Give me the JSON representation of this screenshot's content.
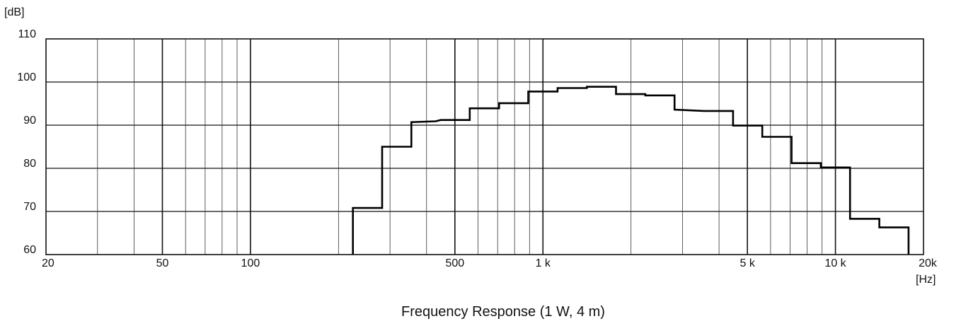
{
  "chart_data": {
    "type": "line",
    "title": "Frequency Response (1 W, 4 m)",
    "xlabel": "[Hz]",
    "ylabel": "[dB]",
    "x_scale": "log",
    "xlim": [
      20,
      20000
    ],
    "ylim": [
      60,
      110
    ],
    "grid": true,
    "x_ticks": [
      {
        "value": 20,
        "label": "20"
      },
      {
        "value": 50,
        "label": "50"
      },
      {
        "value": 100,
        "label": "100"
      },
      {
        "value": 500,
        "label": "500"
      },
      {
        "value": 1000,
        "label": "1 k"
      },
      {
        "value": 5000,
        "label": "5 k"
      },
      {
        "value": 10000,
        "label": "10 k"
      },
      {
        "value": 20000,
        "label": "20k"
      }
    ],
    "y_ticks": [
      {
        "value": 60,
        "label": "60"
      },
      {
        "value": 70,
        "label": "70"
      },
      {
        "value": 80,
        "label": "80"
      },
      {
        "value": 90,
        "label": "90"
      },
      {
        "value": 100,
        "label": "100"
      },
      {
        "value": 110,
        "label": "110"
      }
    ],
    "x_minor_grid": [
      30,
      40,
      60,
      70,
      80,
      90,
      200,
      300,
      400,
      600,
      700,
      800,
      900,
      2000,
      3000,
      4000,
      6000,
      7000,
      8000,
      9000
    ],
    "x_major_grid": [
      50,
      100,
      500,
      1000,
      5000,
      10000
    ],
    "series": [
      {
        "line_style": "step",
        "color": "#000000",
        "points": [
          {
            "x": 224,
            "y": 60
          },
          {
            "x": 224,
            "y": 70.8
          },
          {
            "x": 282,
            "y": 70.8
          },
          {
            "x": 282,
            "y": 85
          },
          {
            "x": 355,
            "y": 85
          },
          {
            "x": 355,
            "y": 90.7
          },
          {
            "x": 430,
            "y": 90.9
          },
          {
            "x": 447,
            "y": 91.2
          },
          {
            "x": 562,
            "y": 91.2
          },
          {
            "x": 562,
            "y": 93.9
          },
          {
            "x": 708,
            "y": 93.9
          },
          {
            "x": 708,
            "y": 95.1
          },
          {
            "x": 891,
            "y": 95.1
          },
          {
            "x": 891,
            "y": 97.8
          },
          {
            "x": 1122,
            "y": 97.8
          },
          {
            "x": 1122,
            "y": 98.6
          },
          {
            "x": 1413,
            "y": 98.6
          },
          {
            "x": 1413,
            "y": 98.9
          },
          {
            "x": 1778,
            "y": 98.9
          },
          {
            "x": 1778,
            "y": 97.2
          },
          {
            "x": 2239,
            "y": 97.2
          },
          {
            "x": 2239,
            "y": 96.9
          },
          {
            "x": 2818,
            "y": 96.9
          },
          {
            "x": 2818,
            "y": 93.6
          },
          {
            "x": 3548,
            "y": 93.3
          },
          {
            "x": 4467,
            "y": 93.3
          },
          {
            "x": 4467,
            "y": 89.9
          },
          {
            "x": 5623,
            "y": 89.9
          },
          {
            "x": 5623,
            "y": 87.3
          },
          {
            "x": 7079,
            "y": 87.3
          },
          {
            "x": 7079,
            "y": 81.2
          },
          {
            "x": 8913,
            "y": 81.2
          },
          {
            "x": 8913,
            "y": 80.2
          },
          {
            "x": 11220,
            "y": 80.2
          },
          {
            "x": 11220,
            "y": 68.3
          },
          {
            "x": 14125,
            "y": 68.3
          },
          {
            "x": 14125,
            "y": 66.3
          },
          {
            "x": 17783,
            "y": 66.3
          },
          {
            "x": 17783,
            "y": 60
          }
        ]
      }
    ]
  }
}
